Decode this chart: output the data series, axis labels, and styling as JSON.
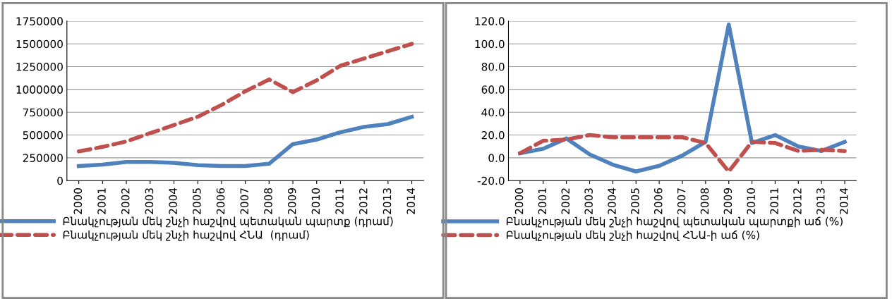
{
  "chart_data": [
    {
      "type": "line",
      "categories": [
        "2000",
        "2001",
        "2002",
        "2003",
        "2004",
        "2005",
        "2006",
        "2007",
        "2008",
        "2009",
        "2010",
        "2011",
        "2012",
        "2013",
        "2014"
      ],
      "series": [
        {
          "name": "Բնակչության մեկ շնչի հաշվով պետական պարտք (դրամ)",
          "color": "#4f81bd",
          "line_style": "solid",
          "values": [
            160000,
            175000,
            205000,
            205000,
            195000,
            170000,
            160000,
            160000,
            185000,
            400000,
            450000,
            530000,
            590000,
            620000,
            700000
          ]
        },
        {
          "name": "Բնակչության մեկ շնչի հաշվով ՀՆԱ  (դրամ)",
          "color": "#c0504d",
          "line_style": "dashed",
          "values": [
            320000,
            370000,
            430000,
            520000,
            610000,
            700000,
            830000,
            980000,
            1110000,
            970000,
            1100000,
            1260000,
            1340000,
            1420000,
            1500000
          ]
        }
      ],
      "ylim": [
        0,
        1750000
      ],
      "yticks": [
        0,
        250000,
        500000,
        750000,
        1000000,
        1250000,
        1500000,
        1750000
      ],
      "grid": "y",
      "legend": "bottom",
      "marker": "none"
    },
    {
      "type": "line",
      "categories": [
        "2000",
        "2001",
        "2002",
        "2003",
        "2004",
        "2005",
        "2006",
        "2007",
        "2008",
        "2009",
        "2010",
        "2011",
        "2012",
        "2013",
        "2014"
      ],
      "series": [
        {
          "name": "Բնակչության մեկ շնչի հաշվով պետական պարտքի աճ (%)",
          "color": "#4f81bd",
          "line_style": "solid",
          "values": [
            4,
            8,
            17,
            3,
            -6,
            -12,
            -7,
            2,
            14,
            117,
            13,
            20,
            10,
            6,
            14
          ]
        },
        {
          "name": "Բնակչության մեկ շնչի հաշվով ՀՆԱ-ի աճ (%)",
          "color": "#c0504d",
          "line_style": "dashed",
          "values": [
            4,
            15,
            16,
            20,
            18,
            18,
            18,
            18,
            13,
            -12,
            14,
            13,
            6,
            7,
            6
          ]
        }
      ],
      "ylim": [
        -20,
        120
      ],
      "yticks": [
        {
          "value": -20,
          "label": "-20.0"
        },
        {
          "value": 0,
          "label": "0.0"
        },
        {
          "value": 20,
          "label": "20.0"
        },
        {
          "value": 40,
          "label": "40.0"
        },
        {
          "value": 60,
          "label": "60.0"
        },
        {
          "value": 80,
          "label": "80.0"
        },
        {
          "value": 100,
          "label": "100.0"
        },
        {
          "value": 120,
          "label": "120.0"
        }
      ],
      "grid": "y",
      "legend": "bottom",
      "marker": "none"
    }
  ]
}
